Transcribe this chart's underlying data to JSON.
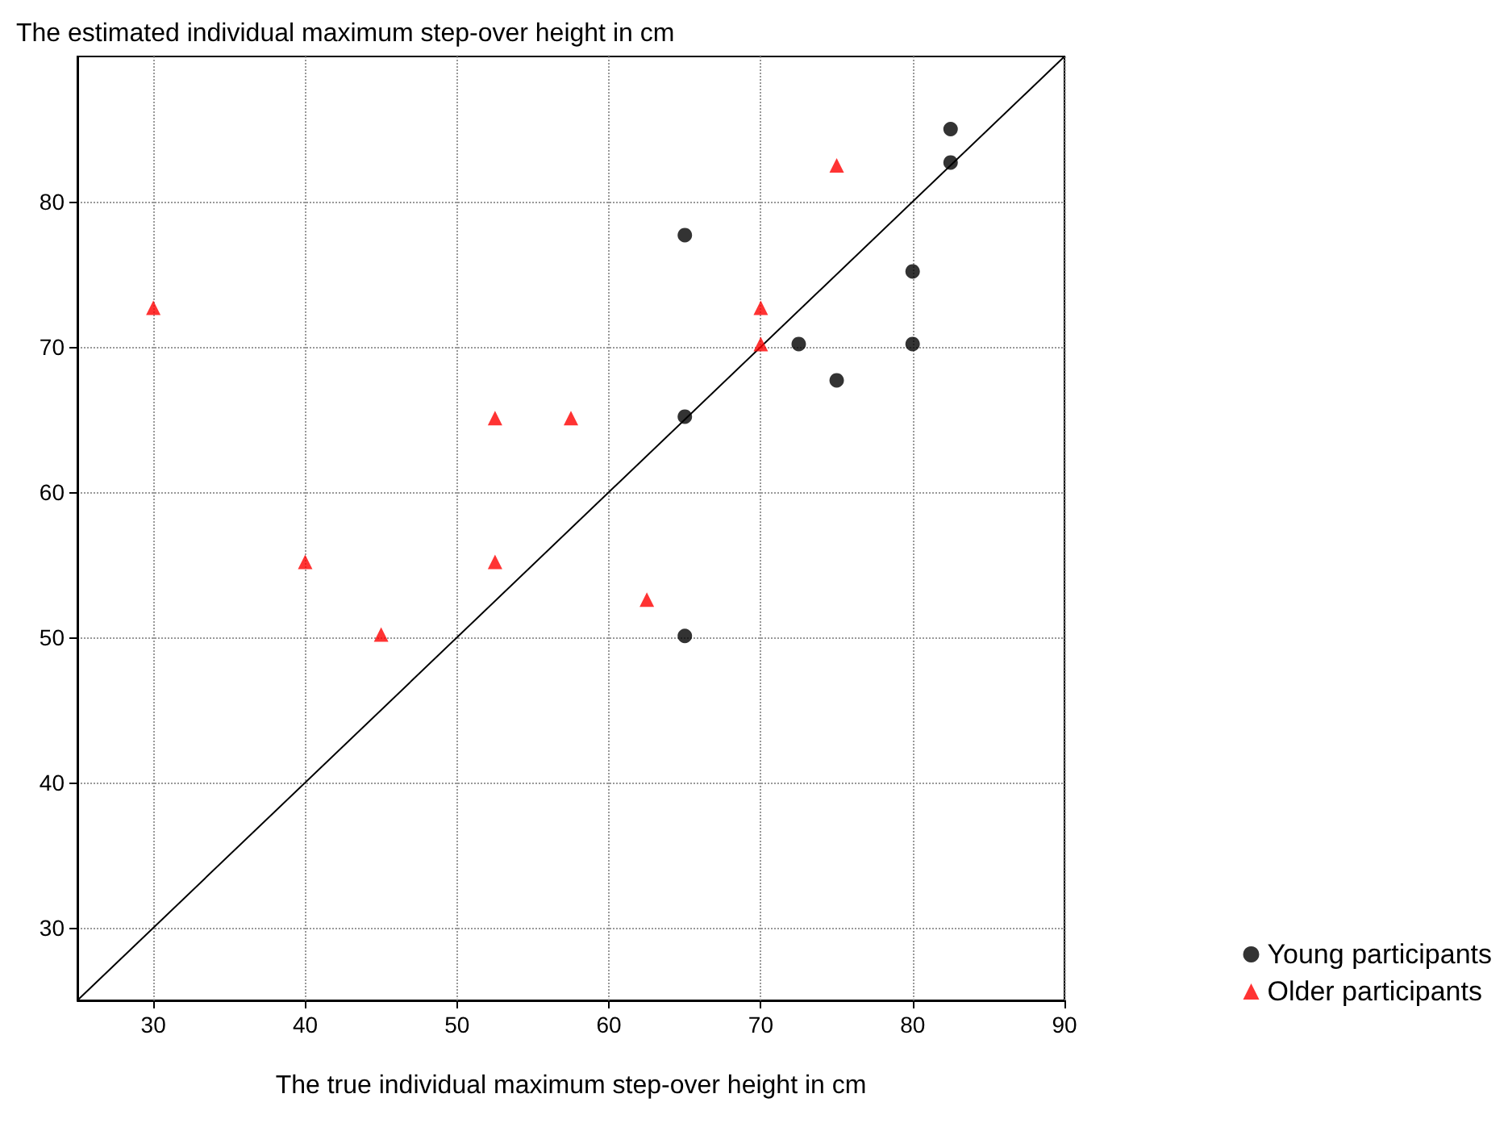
{
  "chart_data": {
    "type": "scatter",
    "xlabel": "The true individual maximum step-over height in cm",
    "ylabel": "The estimated individual maximum step-over height in cm",
    "xlim": [
      25,
      90
    ],
    "xticks": [
      30,
      40,
      50,
      60,
      70,
      80,
      90
    ],
    "ylim": [
      25,
      90
    ],
    "yticks": [
      30,
      40,
      50,
      60,
      70,
      80
    ],
    "grid": true,
    "legend": "bottom right",
    "series": [
      {
        "type": "line",
        "color": "#000000",
        "x": [
          25,
          90
        ],
        "values": [
          25,
          90
        ],
        "marker": "none",
        "line_style": "solid"
      },
      {
        "name": "Young participants",
        "color": "#000000",
        "marker": "circle",
        "x": [
          65,
          82.5,
          82.5,
          80,
          72.5,
          80,
          75,
          65,
          65
        ],
        "values": [
          77.7,
          85,
          82.7,
          75.2,
          70.2,
          70.2,
          67.7,
          65.2,
          50.1
        ]
      },
      {
        "name": "Older participants",
        "color": "#ff0000",
        "marker": "triangle",
        "x": [
          30,
          75,
          70,
          70,
          52.5,
          57.5,
          40,
          52.5,
          45,
          62.5
        ],
        "values": [
          72.7,
          82.5,
          72.7,
          70.2,
          65.1,
          65.1,
          55.2,
          55.2,
          50.2,
          52.6
        ]
      }
    ]
  }
}
